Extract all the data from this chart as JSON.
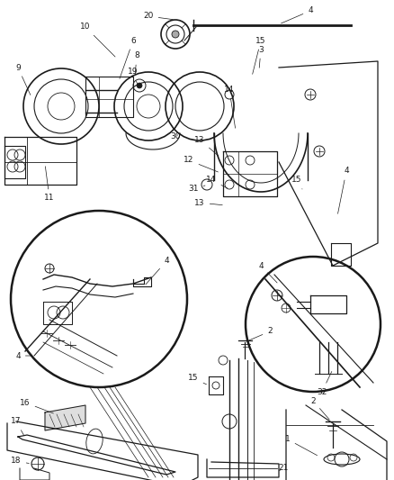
{
  "bg_color": "#ffffff",
  "fig_width": 4.38,
  "fig_height": 5.33,
  "dpi": 100,
  "line_color": "#1a1a1a",
  "label_fontsize": 6.5
}
